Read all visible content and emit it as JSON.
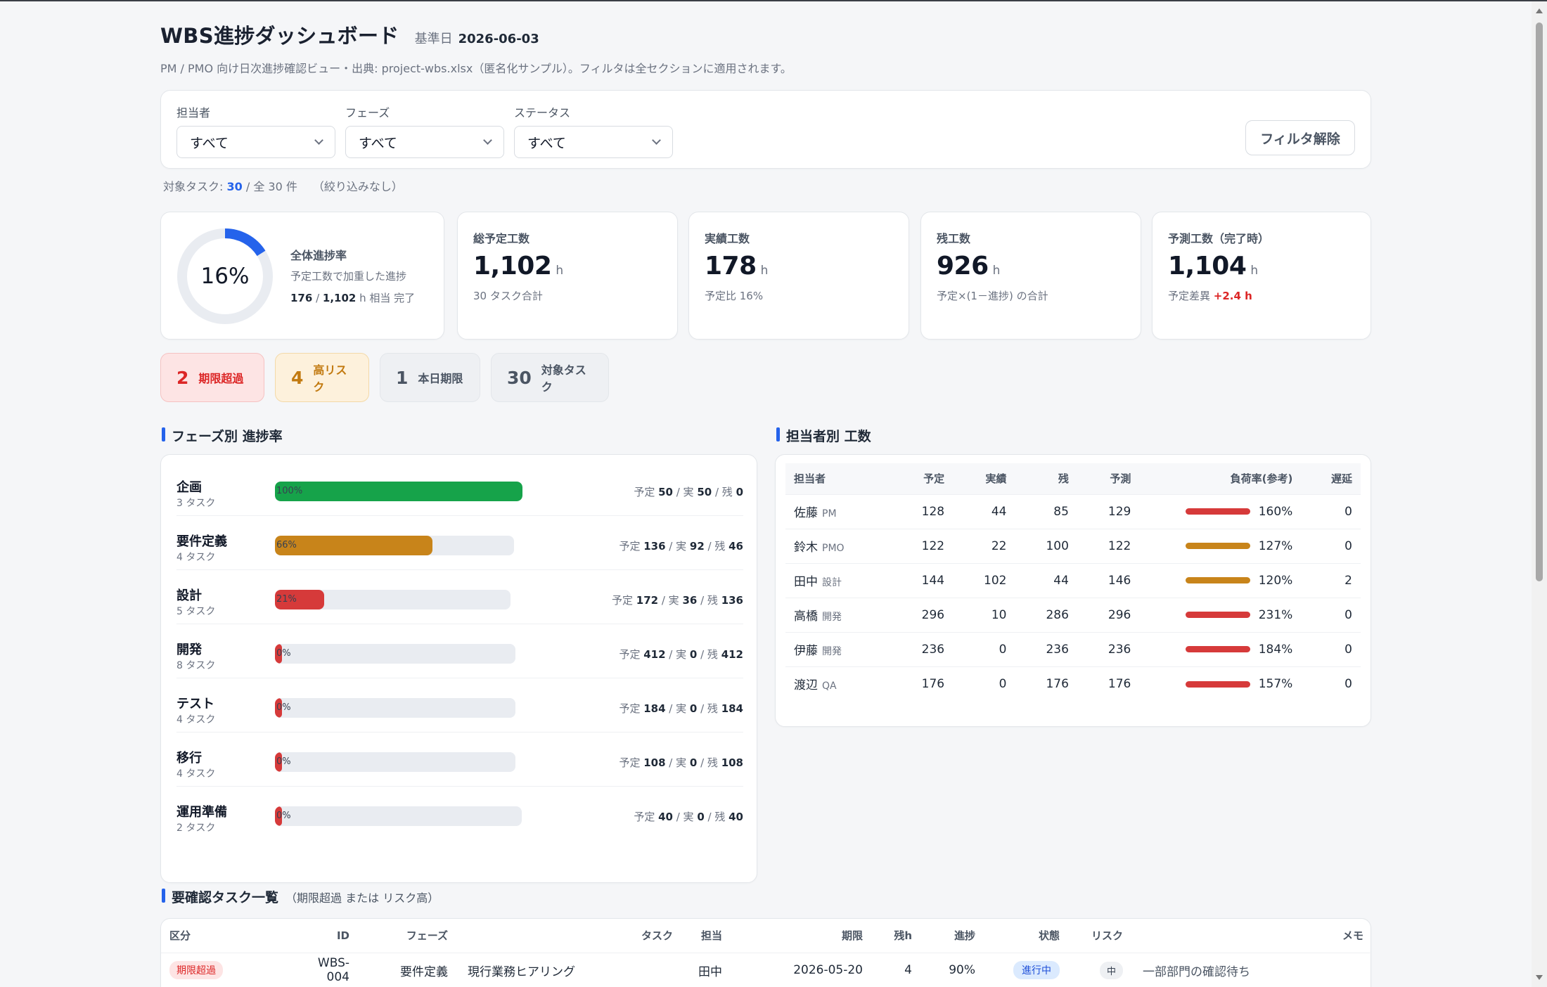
{
  "header": {
    "title": "WBS進捗ダッシュボード",
    "basedate_label": "基準日",
    "basedate": "2026-06-03",
    "subtitle": "PM / PMO 向け日次進捗確認ビュー・出典: project-wbs.xlsx（匿名化サンプル）。フィルタは全セクションに適用されます。"
  },
  "filters": {
    "assignee_label": "担当者",
    "assignee_value": "すべて",
    "phase_label": "フェーズ",
    "phase_value": "すべて",
    "status_label": "ステータス",
    "status_value": "すべて",
    "clear_label": "フィルタ解除"
  },
  "count_line": {
    "prefix": "対象タスク: ",
    "count": "30",
    "middle": " / 全 30 件",
    "note": "（絞り込みなし）"
  },
  "kpis": {
    "progress": {
      "percent_text": "16%",
      "percent": 16,
      "title": "全体進捗率",
      "sub": "予定工数で加重した進捗",
      "done": "176",
      "sep": " / ",
      "total": "1,102",
      "suffix": " h 相当 完了"
    },
    "planned": {
      "label": "総予定工数",
      "value": "1,102",
      "unit": "h",
      "sub": "30 タスク合計"
    },
    "actual": {
      "label": "実績工数",
      "value": "178",
      "unit": "h",
      "sub": "予定比 16%"
    },
    "remaining": {
      "label": "残工数",
      "value": "926",
      "unit": "h",
      "sub": "予定×(1－進捗) の合計"
    },
    "forecast": {
      "label": "予測工数（完了時）",
      "value": "1,104",
      "unit": "h",
      "sub_prefix": "予定差異 ",
      "sub_value": "+2.4 h"
    }
  },
  "badges": [
    {
      "num": "2",
      "label": "期限超過"
    },
    {
      "num": "4",
      "label": "高リスク"
    },
    {
      "num": "1",
      "label": "本日期限"
    },
    {
      "num": "30",
      "label": "対象タスク"
    }
  ],
  "colors": {
    "green": "#16a34a",
    "amber": "#c8841a",
    "red": "#d63a3a",
    "blue": "#2563eb",
    "track": "#e9ecf1"
  },
  "phase_section": {
    "title": "フェーズ別 進捗率",
    "phases": [
      {
        "name": "企画",
        "tasks": "3 タスク",
        "pct": "100%",
        "progress": 100,
        "plan": "50",
        "actual": "50",
        "remain": "0"
      },
      {
        "name": "要件定義",
        "tasks": "4 タスク",
        "pct": "66%",
        "progress": 66,
        "plan": "136",
        "actual": "92",
        "remain": "46"
      },
      {
        "name": "設計",
        "tasks": "5 タスク",
        "pct": "21%",
        "progress": 21,
        "plan": "172",
        "actual": "36",
        "remain": "136"
      },
      {
        "name": "開発",
        "tasks": "8 タスク",
        "pct": "0%",
        "progress": 0,
        "plan": "412",
        "actual": "0",
        "remain": "412"
      },
      {
        "name": "テスト",
        "tasks": "4 タスク",
        "pct": "0%",
        "progress": 0,
        "plan": "184",
        "actual": "0",
        "remain": "184"
      },
      {
        "name": "移行",
        "tasks": "4 タスク",
        "pct": "0%",
        "progress": 0,
        "plan": "108",
        "actual": "0",
        "remain": "108"
      },
      {
        "name": "運用準備",
        "tasks": "2 タスク",
        "pct": "0%",
        "progress": 0,
        "plan": "40",
        "actual": "0",
        "remain": "40"
      }
    ],
    "labels": {
      "plan": "予定 ",
      "actual": " / 実 ",
      "remain": " / 残 "
    }
  },
  "member_section": {
    "title": "担当者別 工数",
    "headers": [
      "担当者",
      "予定",
      "実績",
      "残",
      "予測",
      "負荷率(参考)",
      "遅延"
    ],
    "rows": [
      {
        "name": "佐藤",
        "role": "PM",
        "plan": "128",
        "actual": "44",
        "remain": "85",
        "forecast": "129",
        "load": "160%",
        "load_level": "red",
        "late": "0"
      },
      {
        "name": "鈴木",
        "role": "PMO",
        "plan": "122",
        "actual": "22",
        "remain": "100",
        "forecast": "122",
        "load": "127%",
        "load_level": "amber",
        "late": "0"
      },
      {
        "name": "田中",
        "role": "設計",
        "plan": "144",
        "actual": "102",
        "remain": "44",
        "forecast": "146",
        "load": "120%",
        "load_level": "amber",
        "late": "2"
      },
      {
        "name": "高橋",
        "role": "開発",
        "plan": "296",
        "actual": "10",
        "remain": "286",
        "forecast": "296",
        "load": "231%",
        "load_level": "red",
        "late": "0"
      },
      {
        "name": "伊藤",
        "role": "開発",
        "plan": "236",
        "actual": "0",
        "remain": "236",
        "forecast": "236",
        "load": "184%",
        "load_level": "red",
        "late": "0"
      },
      {
        "name": "渡辺",
        "role": "QA",
        "plan": "176",
        "actual": "0",
        "remain": "176",
        "forecast": "176",
        "load": "157%",
        "load_level": "red",
        "late": "0"
      }
    ]
  },
  "task_section": {
    "title": "要確認タスク一覧",
    "note": "（期限超過 または リスク高）",
    "headers": [
      "区分",
      "ID",
      "フェーズ",
      "タスク",
      "担当",
      "期限",
      "残h",
      "進捗",
      "状態",
      "リスク",
      "メモ"
    ],
    "rows": [
      {
        "kind": "期限超過",
        "id": "WBS-004",
        "phase": "要件定義",
        "task": "現行業務ヒアリング",
        "owner": "田中",
        "due": "2026-05-20",
        "remain": "4",
        "progress": "90%",
        "status": "進行中",
        "risk": "中",
        "memo": "一部部門の確認待ち"
      }
    ]
  }
}
